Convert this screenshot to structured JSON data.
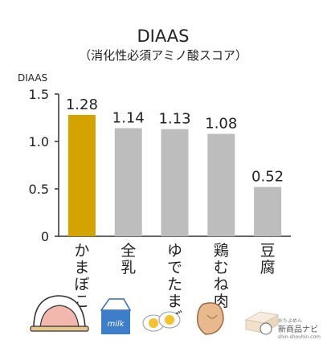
{
  "chart_data": {
    "type": "bar",
    "title": "DIAAS",
    "subtitle": "（消化性必須アミノ酸スコア）",
    "ylabel": "DIAAS",
    "xlabel": "",
    "ylim": [
      0,
      1.5
    ],
    "yticks": [
      0,
      0.5,
      1.0,
      1.5
    ],
    "ytick_labels": [
      "0",
      "0.5",
      "1.0",
      "1.5"
    ],
    "categories": [
      "かまぼこ",
      "全乳",
      "ゆでたまご",
      "鶏むね肉",
      "豆腐"
    ],
    "values": [
      1.28,
      1.14,
      1.13,
      1.08,
      0.52
    ],
    "value_labels": [
      "1.28",
      "1.14",
      "1.13",
      "1.08",
      "0.52"
    ],
    "grid": false,
    "legend": "none",
    "colors": {
      "highlight": "#D4A300",
      "default": "#BDBDBD",
      "axis": "#333333"
    },
    "highlight_index": 0
  },
  "icons": [
    "kamaboko-icon",
    "milk-carton-icon",
    "boiled-egg-icon",
    "chicken-breast-icon",
    "tofu-icon"
  ],
  "milk_icon_text": "milk",
  "logo": {
    "name": "新商品ナビ",
    "small": "おたよめん",
    "url": "shin-shouhin.com"
  }
}
